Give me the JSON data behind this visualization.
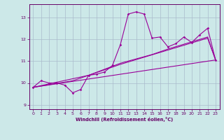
{
  "xlabel": "Windchill (Refroidissement éolien,°C)",
  "ylabel": "",
  "bg_color": "#cce8e8",
  "line_color": "#990099",
  "grid_color": "#aabbcc",
  "xlim": [
    -0.5,
    23.5
  ],
  "ylim": [
    8.8,
    13.6
  ],
  "yticks": [
    9,
    10,
    11,
    12,
    13
  ],
  "xticks": [
    0,
    1,
    2,
    3,
    4,
    5,
    6,
    7,
    8,
    9,
    10,
    11,
    12,
    13,
    14,
    15,
    16,
    17,
    18,
    19,
    20,
    21,
    22,
    23
  ],
  "series": [
    {
      "x": [
        0,
        1,
        2,
        3,
        4,
        5,
        6,
        7,
        8,
        9,
        10,
        11,
        12,
        13,
        14,
        15,
        16,
        17,
        18,
        19,
        20,
        21,
        22,
        23
      ],
      "y": [
        9.8,
        10.1,
        10.0,
        10.0,
        9.9,
        9.55,
        9.7,
        10.35,
        10.4,
        10.5,
        10.8,
        11.75,
        13.15,
        13.25,
        13.15,
        12.05,
        12.1,
        11.65,
        11.8,
        12.1,
        11.85,
        12.2,
        12.5,
        11.05
      ],
      "marker": true
    },
    {
      "x": [
        0,
        23
      ],
      "y": [
        9.8,
        11.05
      ],
      "marker": false
    },
    {
      "x": [
        0,
        7,
        11,
        22,
        23
      ],
      "y": [
        9.8,
        10.35,
        10.85,
        12.05,
        11.05
      ],
      "marker": false
    },
    {
      "x": [
        0,
        5,
        7,
        11,
        15,
        17,
        22,
        23
      ],
      "y": [
        9.8,
        10.1,
        10.35,
        10.9,
        11.3,
        11.55,
        12.1,
        11.05
      ],
      "marker": false
    }
  ]
}
